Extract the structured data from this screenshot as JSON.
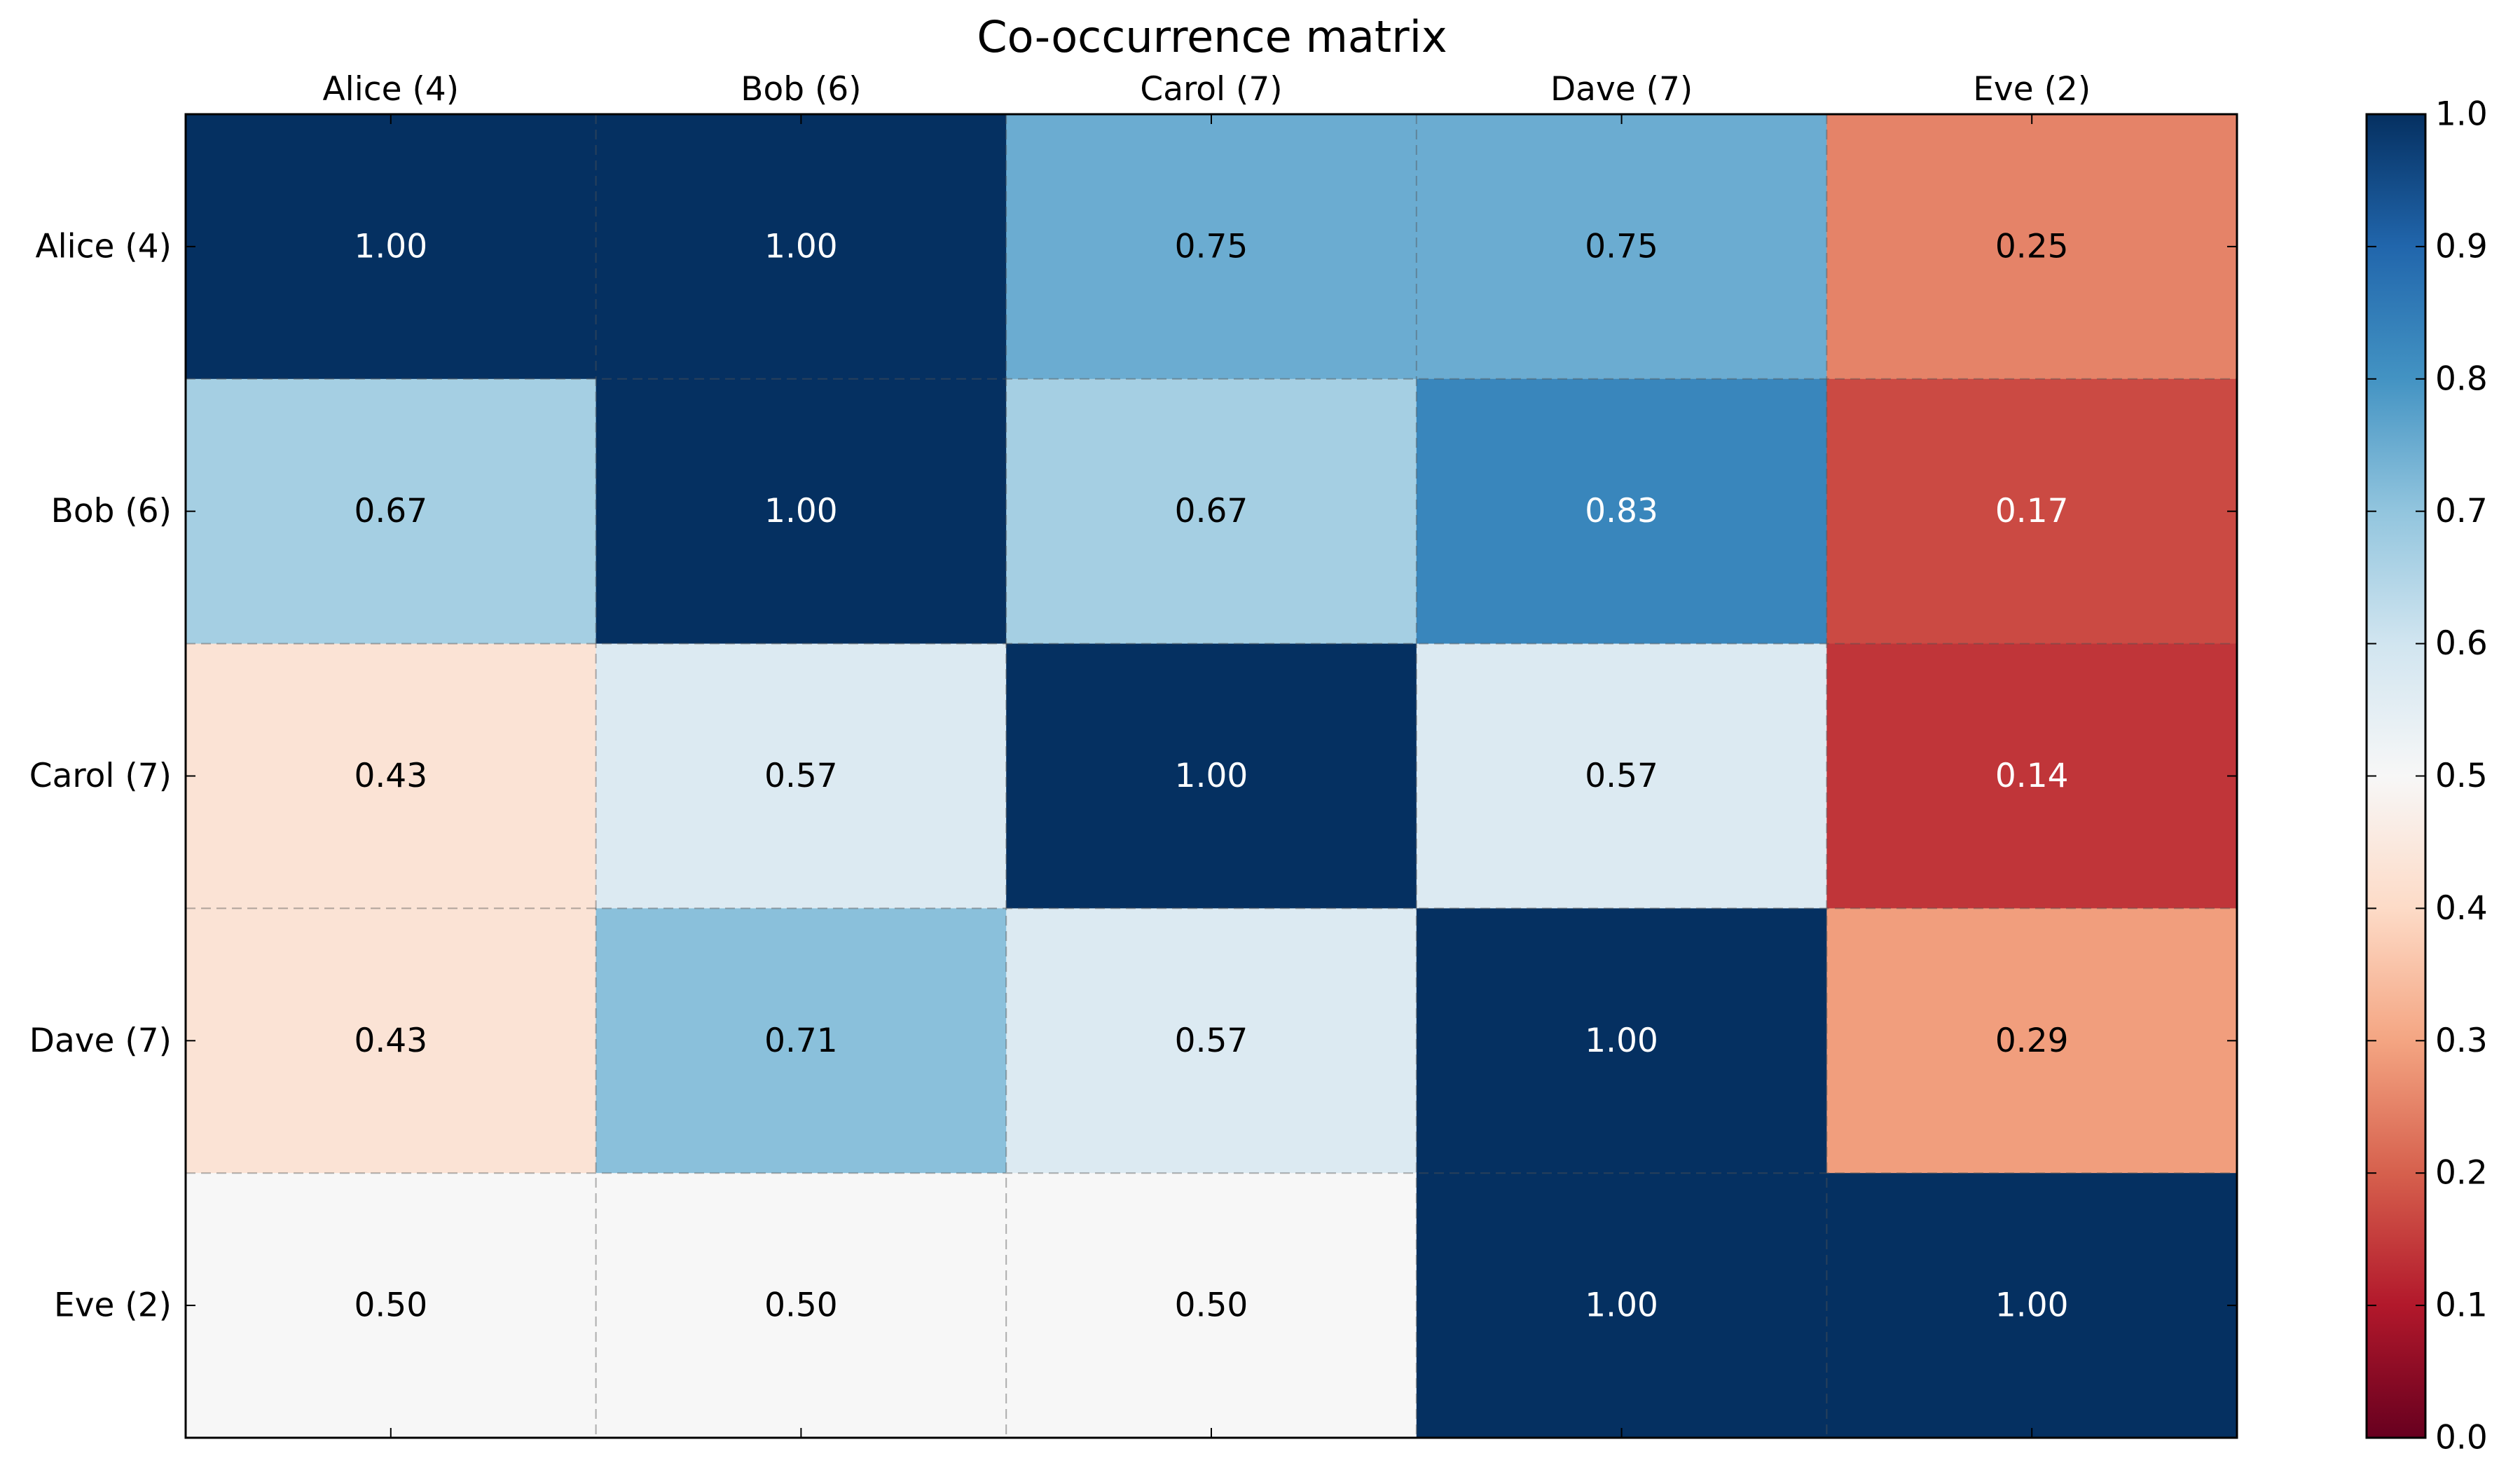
{
  "chart_data": {
    "type": "heatmap",
    "title": "Co-occurrence matrix",
    "xlabel": "",
    "ylabel": "",
    "x_categories": [
      "Alice (4)",
      "Bob (6)",
      "Carol (7)",
      "Dave (7)",
      "Eve (2)"
    ],
    "y_categories": [
      "Alice (4)",
      "Bob (6)",
      "Carol (7)",
      "Dave (7)",
      "Eve (2)"
    ],
    "values": [
      [
        1.0,
        1.0,
        0.75,
        0.75,
        0.25
      ],
      [
        0.67,
        1.0,
        0.67,
        0.83,
        0.17
      ],
      [
        0.43,
        0.57,
        1.0,
        0.57,
        0.14
      ],
      [
        0.43,
        0.71,
        0.57,
        1.0,
        0.29
      ],
      [
        0.5,
        0.5,
        0.5,
        1.0,
        1.0
      ]
    ],
    "cell_labels": [
      [
        "1.00",
        "1.00",
        "0.75",
        "0.75",
        "0.25"
      ],
      [
        "0.67",
        "1.00",
        "0.67",
        "0.83",
        "0.17"
      ],
      [
        "0.43",
        "0.57",
        "1.00",
        "0.57",
        "0.14"
      ],
      [
        "0.43",
        "0.71",
        "0.57",
        "1.00",
        "0.29"
      ],
      [
        "0.50",
        "0.50",
        "0.50",
        "1.00",
        "1.00"
      ]
    ],
    "colormap": "RdBu",
    "colormap_stops": [
      "#67001f",
      "#b2182b",
      "#d6604d",
      "#f4a582",
      "#fddbc7",
      "#f7f7f7",
      "#d1e5f0",
      "#92c5de",
      "#4393c3",
      "#2166ac",
      "#053061"
    ],
    "vmin": 0.0,
    "vmax": 1.0,
    "colorbar": {
      "ticks": [
        0.0,
        0.1,
        0.2,
        0.3,
        0.4,
        0.5,
        0.6,
        0.7,
        0.8,
        0.9,
        1.0
      ],
      "tick_labels": [
        "0.0",
        "0.1",
        "0.2",
        "0.3",
        "0.4",
        "0.5",
        "0.6",
        "0.7",
        "0.8",
        "0.9",
        "1.0"
      ]
    },
    "x_axis_position": "top",
    "grid": true,
    "grid_style": "dashed"
  }
}
